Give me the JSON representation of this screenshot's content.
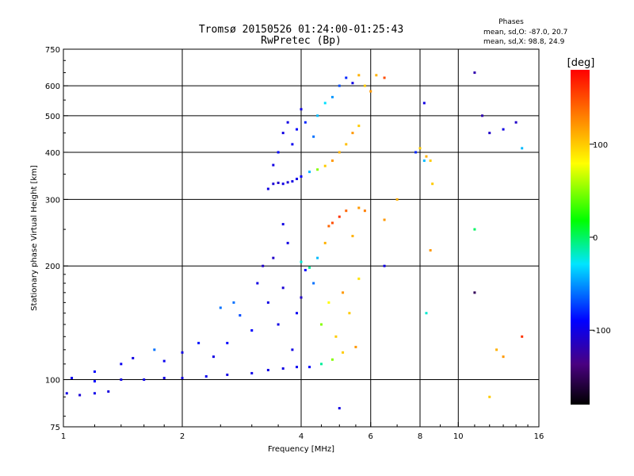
{
  "chart_data": {
    "type": "scatter",
    "title": "Tromsø 20150526 01:24:00-01:25:43",
    "subtitle": "RwPretec (Bp)",
    "xlabel": "Frequency [MHz]",
    "ylabel": "Stationary phase Virtual Height [km]",
    "x_scale": "log",
    "y_scale": "log",
    "xlim": [
      1,
      16
    ],
    "ylim": [
      75,
      750
    ],
    "xticks": [
      1,
      2,
      4,
      6,
      8,
      10,
      16
    ],
    "yticks": [
      75,
      100,
      200,
      300,
      400,
      500,
      600,
      750
    ],
    "x_gridlines": [
      2,
      4,
      6,
      8,
      10
    ],
    "y_gridlines": [
      100,
      200,
      300,
      400,
      500,
      600
    ],
    "grid": true,
    "stats": {
      "header": "Phases",
      "line_o": "mean, sd,O:  -87.0, 20.7",
      "line_x": "mean, sd,X:  98.8, 24.9"
    },
    "colorbar": {
      "label": "[deg]",
      "ticks": [
        100,
        0,
        -100
      ],
      "range": [
        -180,
        180
      ],
      "colormap": "rainbow"
    },
    "series": [
      {
        "points": [
          [
            1.02,
            92,
            -100
          ],
          [
            1.1,
            91,
            -105
          ],
          [
            1.2,
            92,
            -98
          ],
          [
            1.3,
            93,
            -102
          ],
          [
            1.05,
            101,
            -95
          ],
          [
            1.2,
            99,
            -90
          ],
          [
            1.4,
            100,
            -100
          ],
          [
            1.6,
            100,
            -98
          ],
          [
            1.8,
            101,
            -100
          ],
          [
            2.0,
            101,
            -102
          ],
          [
            2.3,
            102,
            -95
          ],
          [
            2.6,
            103,
            -100
          ],
          [
            3.0,
            104,
            -98
          ],
          [
            3.3,
            106,
            -100
          ],
          [
            3.6,
            107,
            -100
          ],
          [
            3.9,
            108,
            -95
          ],
          [
            4.2,
            108,
            -90
          ],
          [
            4.5,
            110,
            -10
          ],
          [
            4.8,
            113,
            50
          ],
          [
            5.1,
            118,
            100
          ],
          [
            5.5,
            122,
            120
          ],
          [
            1.2,
            105,
            -90
          ],
          [
            1.4,
            110,
            -95
          ],
          [
            1.5,
            114,
            -100
          ],
          [
            1.7,
            120,
            -60
          ],
          [
            1.8,
            112,
            -95
          ],
          [
            2.0,
            118,
            -100
          ],
          [
            2.2,
            125,
            -85
          ],
          [
            2.4,
            115,
            -100
          ],
          [
            2.6,
            125,
            -90
          ],
          [
            2.5,
            155,
            -60
          ],
          [
            2.7,
            160,
            -60
          ],
          [
            2.8,
            148,
            -70
          ],
          [
            3.0,
            135,
            -90
          ],
          [
            3.1,
            180,
            -100
          ],
          [
            3.2,
            200,
            -110
          ],
          [
            3.3,
            160,
            -100
          ],
          [
            3.4,
            210,
            -110
          ],
          [
            3.5,
            140,
            -100
          ],
          [
            3.6,
            175,
            -105
          ],
          [
            3.7,
            230,
            -100
          ],
          [
            3.8,
            120,
            -100
          ],
          [
            3.9,
            150,
            -95
          ],
          [
            4.0,
            165,
            -110
          ],
          [
            4.1,
            195,
            -90
          ],
          [
            4.3,
            180,
            -60
          ],
          [
            4.5,
            140,
            50
          ],
          [
            4.7,
            160,
            80
          ],
          [
            4.9,
            130,
            100
          ],
          [
            5.1,
            170,
            120
          ],
          [
            5.3,
            150,
            100
          ],
          [
            5.6,
            185,
            90
          ],
          [
            4.4,
            210,
            -40
          ],
          [
            4.0,
            205,
            -20
          ],
          [
            4.2,
            198,
            -10
          ],
          [
            4.6,
            230,
            110
          ],
          [
            4.8,
            260,
            150
          ],
          [
            5.0,
            270,
            160
          ],
          [
            5.2,
            280,
            140
          ],
          [
            5.4,
            240,
            110
          ],
          [
            5.6,
            285,
            120
          ],
          [
            5.8,
            280,
            130
          ],
          [
            4.7,
            255,
            140
          ],
          [
            6.5,
            265,
            120
          ],
          [
            3.6,
            258,
            -100
          ],
          [
            3.3,
            320,
            -100
          ],
          [
            3.4,
            330,
            -105
          ],
          [
            3.5,
            332,
            -110
          ],
          [
            3.6,
            330,
            -100
          ],
          [
            3.7,
            333,
            -105
          ],
          [
            3.8,
            335,
            -100
          ],
          [
            3.9,
            340,
            -98
          ],
          [
            4.0,
            345,
            -90
          ],
          [
            4.2,
            355,
            -40
          ],
          [
            4.4,
            360,
            50
          ],
          [
            4.6,
            368,
            100
          ],
          [
            4.8,
            380,
            120
          ],
          [
            5.0,
            400,
            110
          ],
          [
            5.2,
            420,
            105
          ],
          [
            5.4,
            450,
            120
          ],
          [
            5.6,
            470,
            100
          ],
          [
            3.4,
            370,
            -100
          ],
          [
            3.5,
            400,
            -90
          ],
          [
            3.6,
            450,
            -100
          ],
          [
            3.7,
            480,
            -100
          ],
          [
            3.8,
            420,
            -95
          ],
          [
            3.9,
            460,
            -90
          ],
          [
            4.0,
            520,
            -100
          ],
          [
            4.1,
            480,
            -80
          ],
          [
            4.3,
            440,
            -60
          ],
          [
            4.4,
            500,
            -40
          ],
          [
            4.6,
            540,
            -30
          ],
          [
            4.8,
            560,
            -50
          ],
          [
            5.0,
            600,
            -70
          ],
          [
            5.2,
            630,
            -80
          ],
          [
            5.4,
            610,
            -100
          ],
          [
            5.6,
            640,
            110
          ],
          [
            5.8,
            600,
            100
          ],
          [
            6.0,
            580,
            120
          ],
          [
            6.2,
            640,
            110
          ],
          [
            6.5,
            630,
            150
          ],
          [
            7.8,
            400,
            -80
          ],
          [
            8.0,
            410,
            100
          ],
          [
            8.3,
            390,
            110
          ],
          [
            8.5,
            380,
            100
          ],
          [
            8.2,
            540,
            -100
          ],
          [
            8.2,
            380,
            -40
          ],
          [
            8.6,
            330,
            100
          ],
          [
            11.0,
            650,
            -120
          ],
          [
            11.5,
            500,
            -120
          ],
          [
            12.0,
            450,
            -110
          ],
          [
            13.0,
            460,
            -100
          ],
          [
            14.0,
            480,
            -110
          ],
          [
            14.5,
            410,
            -40
          ],
          [
            11.0,
            250,
            0
          ],
          [
            11.0,
            170,
            -150
          ],
          [
            12.5,
            120,
            110
          ],
          [
            13.0,
            115,
            120
          ],
          [
            14.5,
            130,
            160
          ],
          [
            12.0,
            90,
            100
          ],
          [
            5.0,
            84,
            -100
          ],
          [
            6.5,
            200,
            -100
          ],
          [
            7.0,
            300,
            110
          ],
          [
            8.5,
            220,
            120
          ],
          [
            8.3,
            150,
            -20
          ]
        ]
      }
    ]
  }
}
